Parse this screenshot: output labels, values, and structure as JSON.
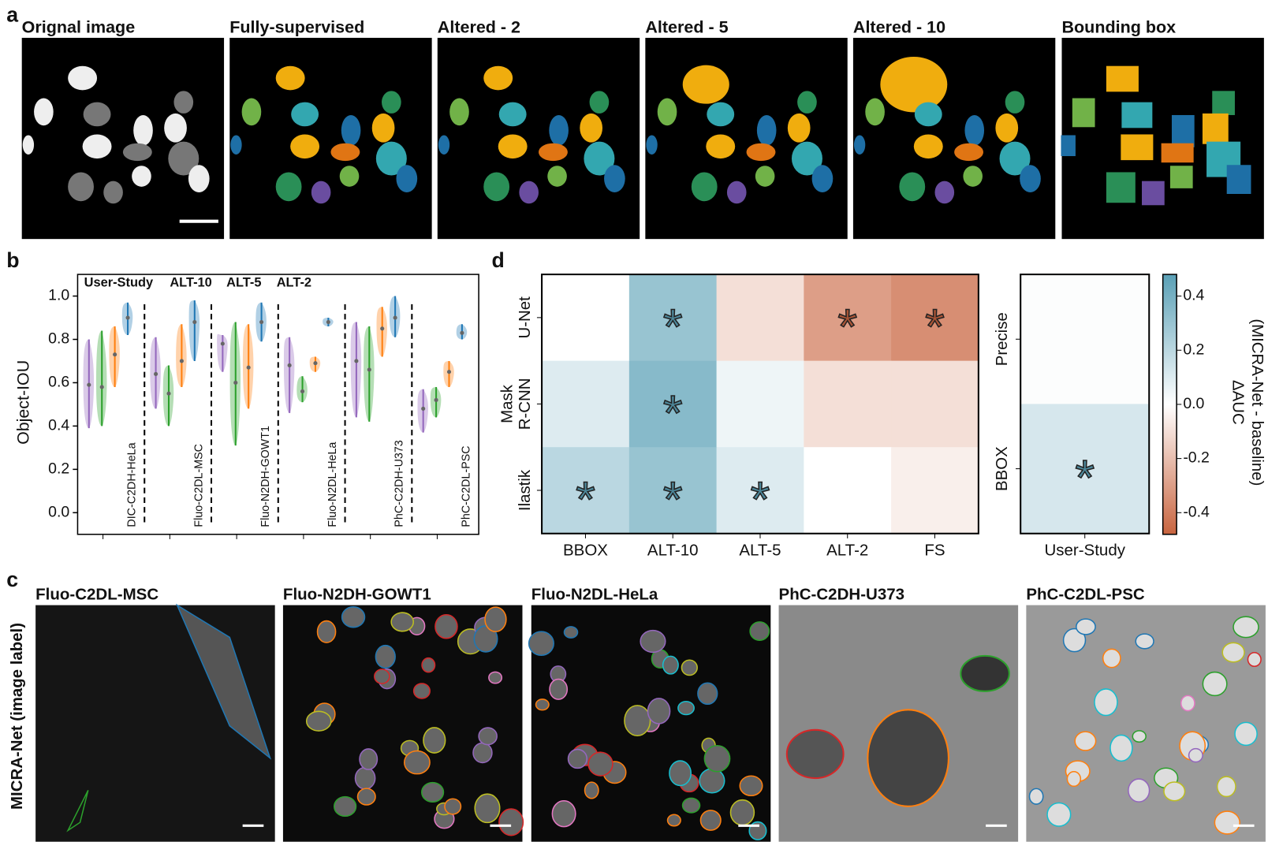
{
  "panel_labels": [
    "a",
    "b",
    "c",
    "d"
  ],
  "panel_a": {
    "titles": [
      "Orignal image",
      "Fully-supervised",
      "Altered - 2",
      "Altered - 5",
      "Altered - 10",
      "Bounding box"
    ]
  },
  "panel_c": {
    "ylabel": "MICRA-Net (image label)",
    "titles": [
      "Fluo-C2DL-MSC",
      "Fluo-N2DH-GOWT1",
      "Fluo-N2DL-HeLa",
      "PhC-C2DH-U373",
      "PhC-C2DL-PSC"
    ]
  },
  "chart_data": [
    {
      "type": "violin",
      "ylabel": "Object-IOU",
      "categories": [
        "DIC-C2DH-HeLa",
        "Fluo-C2DL-MSC",
        "Fluo-N2DH-GOWT1",
        "Fluo-N2DL-HeLa",
        "PhC-C2DH-U373",
        "PhC-C2DL-PSC"
      ],
      "ylim": [
        -0.1,
        1.1
      ],
      "yticks": [
        {
          "value": 0,
          "label": "0.0"
        },
        0.2,
        0.4,
        0.6,
        0.8,
        {
          "value": 1,
          "label": "1.0"
        }
      ],
      "series": [
        {
          "name": "User-Study",
          "color": "#9467bd",
          "min": [
            0.39,
            0.48,
            0.65,
            0.46,
            0.44,
            0.37
          ],
          "median": [
            0.59,
            0.64,
            0.78,
            0.68,
            0.7,
            0.48
          ],
          "max": [
            0.8,
            0.81,
            0.82,
            0.81,
            0.88,
            0.57
          ]
        },
        {
          "name": "ALT-10",
          "color": "#2ca02c",
          "min": [
            0.4,
            0.4,
            0.31,
            0.51,
            0.42,
            0.44
          ],
          "median": [
            0.58,
            0.55,
            0.6,
            0.56,
            0.66,
            0.52
          ],
          "max": [
            0.84,
            0.68,
            0.88,
            0.63,
            0.86,
            0.58
          ]
        },
        {
          "name": "ALT-5",
          "color": "#ff7f0e",
          "min": [
            0.58,
            0.58,
            0.48,
            0.65,
            0.72,
            0.58
          ],
          "median": [
            0.73,
            0.7,
            0.67,
            0.69,
            0.85,
            0.65
          ],
          "max": [
            0.86,
            0.87,
            0.87,
            0.72,
            0.95,
            0.7
          ]
        },
        {
          "name": "ALT-2",
          "color": "#1f77b4",
          "min": [
            0.82,
            0.7,
            0.79,
            0.86,
            0.81,
            0.8
          ],
          "median": [
            0.9,
            0.88,
            0.88,
            0.88,
            0.9,
            0.83
          ],
          "max": [
            0.97,
            0.98,
            0.97,
            0.9,
            1.0,
            0.87
          ]
        }
      ]
    },
    {
      "type": "heatmap",
      "rows": [
        [
          "U-Net"
        ],
        [
          "Mask",
          "R-CNN"
        ],
        [
          "Ilastik"
        ]
      ],
      "categories": [
        "BBOX",
        "ALT-10",
        "ALT-5",
        "ALT-2",
        "FS"
      ],
      "values": [
        [
          0.0,
          0.3,
          -0.1,
          -0.3,
          -0.35
        ],
        [
          0.1,
          0.35,
          0.05,
          -0.1,
          -0.1
        ],
        [
          0.2,
          0.3,
          0.1,
          0.0,
          -0.05
        ]
      ],
      "annotations": [
        [
          null,
          "*",
          null,
          "*",
          "*"
        ],
        [
          null,
          "*",
          null,
          null,
          null
        ],
        [
          "*",
          "*",
          "*",
          null,
          null
        ]
      ],
      "clim": [
        -0.48,
        0.48
      ],
      "colormap": [
        "#c8643f",
        "#ffffff",
        "#5aa0b6"
      ],
      "colorbar": {
        "label": [
          "ΔAUC",
          "(MICRA-Net - baseline)"
        ],
        "ticks": [
          0.4,
          0.2,
          {
            "value": 0,
            "label": "0.0"
          },
          -0.2,
          -0.4
        ]
      }
    },
    {
      "type": "heatmap",
      "rows": [
        [
          "Precise"
        ],
        [
          "BBOX"
        ]
      ],
      "categories": [
        "User-Study"
      ],
      "values": [
        [
          0.01
        ],
        [
          0.12
        ]
      ],
      "annotations": [
        [
          null
        ],
        [
          "*"
        ]
      ],
      "clim": [
        -0.48,
        0.48
      ],
      "colormap": [
        "#c8643f",
        "#ffffff",
        "#5aa0b6"
      ]
    }
  ]
}
